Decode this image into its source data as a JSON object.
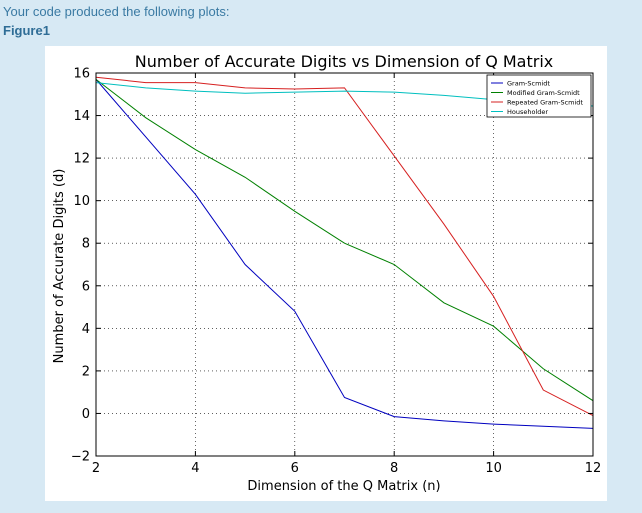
{
  "header": {
    "intro_text": "Your code produced the following plots:",
    "figure_label": "Figure1"
  },
  "chart_data": {
    "type": "line",
    "title": "Number of Accurate Digits vs Dimension of Q Matrix",
    "xlabel": "Dimension of the Q Matrix (n)",
    "ylabel": "Number of Accurate Digits (d)",
    "xlim": [
      2,
      12
    ],
    "ylim": [
      -2,
      16
    ],
    "xticks": [
      2,
      4,
      6,
      8,
      10,
      12
    ],
    "yticks": [
      -2,
      0,
      2,
      4,
      6,
      8,
      10,
      12,
      14,
      16
    ],
    "grid": true,
    "legend_position": "top-right",
    "x": [
      2,
      3,
      4,
      5,
      6,
      7,
      8,
      9,
      10,
      11,
      12
    ],
    "series": [
      {
        "name": "Gram-Scmidt",
        "color": "#0000bf",
        "values": [
          15.7,
          13.0,
          10.3,
          7.0,
          4.8,
          0.75,
          -0.15,
          -0.35,
          -0.5,
          -0.6,
          -0.7
        ]
      },
      {
        "name": "Modified Gram-Scmidt",
        "color": "#008000",
        "values": [
          15.7,
          13.9,
          12.4,
          11.1,
          9.5,
          8.0,
          7.0,
          5.2,
          4.1,
          2.1,
          0.6
        ]
      },
      {
        "name": "Repeated Gram-Scmidt",
        "color": "#d62020",
        "values": [
          15.8,
          15.55,
          15.55,
          15.3,
          15.25,
          15.3,
          12.1,
          8.9,
          5.5,
          1.1,
          -0.1
        ]
      },
      {
        "name": "Householder",
        "color": "#00bfbf",
        "values": [
          15.55,
          15.3,
          15.15,
          15.05,
          15.1,
          15.15,
          15.1,
          14.95,
          14.75,
          14.55,
          14.45
        ]
      }
    ]
  }
}
